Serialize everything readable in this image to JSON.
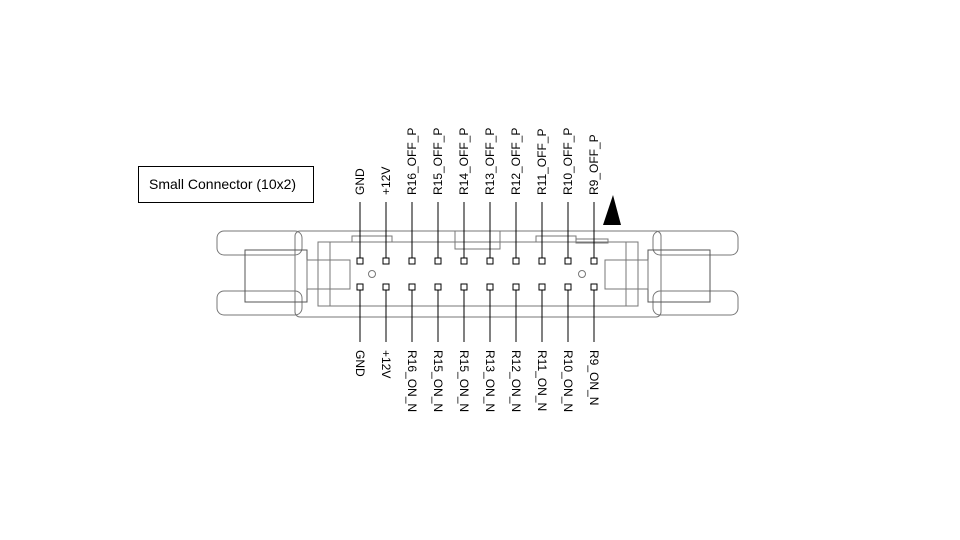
{
  "diagram": {
    "title": "Small Connector (10x2)",
    "top_labels": [
      "GND",
      "+12V",
      "R16_OFF_P",
      "R15_OFF_P",
      "R14_OFF_P",
      "R13_OFF_P",
      "R12_OFF_P",
      "R11_OFF_P",
      "R10_OFF_P",
      "R9_OFF_P"
    ],
    "bottom_labels": [
      "GND",
      "+12V",
      "R16_ON_N",
      "R15_ON_N",
      "R15_ON_N",
      "R13_ON_N",
      "R12_ON_N",
      "R11_ON_N",
      "R10_ON_N",
      "R9_ON_N"
    ],
    "pin1_marker": "triangle-up"
  }
}
